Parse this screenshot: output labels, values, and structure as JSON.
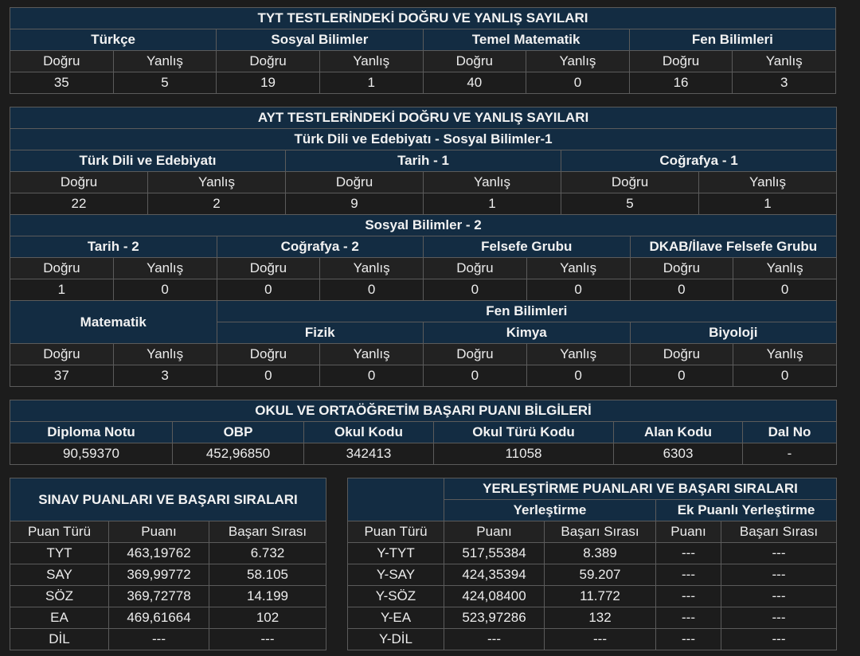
{
  "labels": {
    "dogru": "Doğru",
    "yanlis": "Yanlış"
  },
  "tyt": {
    "title": "TYT TESTLERİNDEKİ DOĞRU VE YANLIŞ SAYILARI",
    "subjects": [
      {
        "name": "Türkçe",
        "dogru": "35",
        "yanlis": "5"
      },
      {
        "name": "Sosyal Bilimler",
        "dogru": "19",
        "yanlis": "1"
      },
      {
        "name": "Temel Matematik",
        "dogru": "40",
        "yanlis": "0"
      },
      {
        "name": "Fen Bilimleri",
        "dogru": "16",
        "yanlis": "3"
      }
    ]
  },
  "ayt": {
    "title": "AYT TESTLERİNDEKİ DOĞRU VE YANLIŞ SAYILARI",
    "group1": {
      "title": "Türk Dili ve Edebiyatı - Sosyal Bilimler-1",
      "subjects": [
        {
          "name": "Türk Dili ve Edebiyatı",
          "dogru": "22",
          "yanlis": "2"
        },
        {
          "name": "Tarih - 1",
          "dogru": "9",
          "yanlis": "1"
        },
        {
          "name": "Coğrafya - 1",
          "dogru": "5",
          "yanlis": "1"
        }
      ]
    },
    "group2": {
      "title": "Sosyal Bilimler - 2",
      "subjects": [
        {
          "name": "Tarih - 2",
          "dogru": "1",
          "yanlis": "0"
        },
        {
          "name": "Coğrafya - 2",
          "dogru": "0",
          "yanlis": "0"
        },
        {
          "name": "Felsefe Grubu",
          "dogru": "0",
          "yanlis": "0"
        },
        {
          "name": "DKAB/İlave Felsefe Grubu",
          "dogru": "0",
          "yanlis": "0"
        }
      ]
    },
    "matematik": {
      "name": "Matematik",
      "dogru": "37",
      "yanlis": "3"
    },
    "fen": {
      "title": "Fen Bilimleri",
      "subjects": [
        {
          "name": "Fizik",
          "dogru": "0",
          "yanlis": "0"
        },
        {
          "name": "Kimya",
          "dogru": "0",
          "yanlis": "0"
        },
        {
          "name": "Biyoloji",
          "dogru": "0",
          "yanlis": "0"
        }
      ]
    }
  },
  "obp": {
    "title": "OKUL VE ORTAÖĞRETİM BAŞARI PUANI BİLGİLERİ",
    "headers": [
      "Diploma Notu",
      "OBP",
      "Okul Kodu",
      "Okul Türü Kodu",
      "Alan Kodu",
      "Dal No"
    ],
    "values": [
      "90,59370",
      "452,96850",
      "342413",
      "11058",
      "6303",
      "-"
    ]
  },
  "sinav": {
    "title": "SINAV PUANLARI VE BAŞARI SIRALARI",
    "headers": [
      "Puan Türü",
      "Puanı",
      "Başarı Sırası"
    ],
    "rows": [
      [
        "TYT",
        "463,19762",
        "6.732"
      ],
      [
        "SAY",
        "369,99772",
        "58.105"
      ],
      [
        "SÖZ",
        "369,72778",
        "14.199"
      ],
      [
        "EA",
        "469,61664",
        "102"
      ],
      [
        "DİL",
        "---",
        "---"
      ]
    ]
  },
  "yerlestirme": {
    "title": "YERLEŞTİRME PUANLARI VE BAŞARI SIRALARI",
    "sub1": "Yerleştirme",
    "sub2": "Ek Puanlı Yerleştirme",
    "headers": [
      "Puan Türü",
      "Puanı",
      "Başarı Sırası",
      "Puanı",
      "Başarı Sırası"
    ],
    "rows": [
      [
        "Y-TYT",
        "517,55384",
        "8.389",
        "---",
        "---"
      ],
      [
        "Y-SAY",
        "424,35394",
        "59.207",
        "---",
        "---"
      ],
      [
        "Y-SÖZ",
        "424,08400",
        "11.772",
        "---",
        "---"
      ],
      [
        "Y-EA",
        "523,97286",
        "132",
        "---",
        "---"
      ],
      [
        "Y-DİL",
        "---",
        "---",
        "---",
        "---"
      ]
    ]
  }
}
